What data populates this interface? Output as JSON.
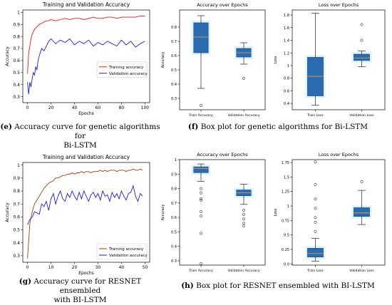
{
  "captions": {
    "e": {
      "tag": "(e)",
      "text": " Accuracy curve for genetic algorithms for",
      "line2": "Bi-LSTM"
    },
    "f": {
      "tag": "(f)",
      "text": " Box plot for genetic algorithms for Bi-LSTM"
    },
    "g": {
      "tag": "(g)",
      "text": " Accuracy curve for RESNET ensembled",
      "line2": "with BI-LSTM"
    },
    "h": {
      "tag": "(h)",
      "text": " Box plot for RESNET ensembled with BI-LSTM"
    }
  },
  "chart_data": [
    {
      "id": "e",
      "type": "line",
      "title": "Training and Validation Accuracy",
      "xlabel": "Epochs",
      "ylabel": "Accuracy",
      "xlim": [
        -4,
        104
      ],
      "ylim": [
        0.25,
        1.02
      ],
      "xticks": [
        0,
        20,
        40,
        60,
        80,
        100
      ],
      "yticks": [
        0.3,
        0.4,
        0.5,
        0.6,
        0.7,
        0.8,
        0.9,
        1.0
      ],
      "legend_position": "center-right",
      "series": [
        {
          "name": "Training accuracy",
          "color": "#e31a1c",
          "x": [
            0,
            1,
            2,
            3,
            4,
            5,
            6,
            7,
            8,
            9,
            10,
            12,
            14,
            16,
            18,
            20,
            24,
            28,
            32,
            36,
            40,
            44,
            48,
            52,
            56,
            60,
            64,
            68,
            72,
            76,
            80,
            84,
            88,
            92,
            96,
            100
          ],
          "y": [
            0.49,
            0.66,
            0.72,
            0.78,
            0.82,
            0.84,
            0.86,
            0.87,
            0.88,
            0.89,
            0.9,
            0.91,
            0.92,
            0.93,
            0.93,
            0.94,
            0.93,
            0.94,
            0.95,
            0.94,
            0.95,
            0.95,
            0.94,
            0.95,
            0.96,
            0.95,
            0.95,
            0.96,
            0.96,
            0.95,
            0.96,
            0.96,
            0.96,
            0.96,
            0.97,
            0.97
          ]
        },
        {
          "name": "Validation accuracy",
          "color": "#1f1fbf",
          "x": [
            0,
            1,
            2,
            3,
            4,
            5,
            6,
            7,
            8,
            9,
            10,
            12,
            14,
            16,
            18,
            20,
            24,
            28,
            32,
            36,
            40,
            44,
            48,
            52,
            56,
            60,
            64,
            68,
            72,
            76,
            80,
            84,
            88,
            92,
            96,
            100
          ],
          "y": [
            0.42,
            0.32,
            0.42,
            0.38,
            0.45,
            0.5,
            0.48,
            0.55,
            0.52,
            0.6,
            0.64,
            0.7,
            0.68,
            0.72,
            0.76,
            0.78,
            0.74,
            0.77,
            0.75,
            0.78,
            0.73,
            0.76,
            0.74,
            0.77,
            0.72,
            0.75,
            0.73,
            0.76,
            0.74,
            0.72,
            0.77,
            0.73,
            0.76,
            0.71,
            0.74,
            0.76
          ]
        }
      ]
    },
    {
      "id": "f1",
      "type": "box",
      "title": "Accuracy over Epochs",
      "ylabel": "Accuracy",
      "ylim": [
        0.22,
        0.92
      ],
      "yticks": [
        0.3,
        0.4,
        0.5,
        0.6,
        0.7,
        0.8
      ],
      "boxes": [
        {
          "label": "Train Accuracy",
          "whisker_low": 0.37,
          "q1": 0.62,
          "median": 0.73,
          "q3": 0.83,
          "whisker_high": 0.88,
          "outliers": [
            0.25
          ]
        },
        {
          "label": "Validation Accuracy",
          "whisker_low": 0.54,
          "q1": 0.59,
          "median": 0.62,
          "q3": 0.65,
          "whisker_high": 0.69,
          "outliers": [
            0.44
          ]
        }
      ]
    },
    {
      "id": "f2",
      "type": "box",
      "title": "Loss over Epochs",
      "ylabel": "Loss",
      "ylim": [
        0.3,
        1.88
      ],
      "yticks": [
        0.4,
        0.6,
        0.8,
        1.0,
        1.2,
        1.4,
        1.6,
        1.8
      ],
      "boxes": [
        {
          "label": "Train Loss",
          "whisker_low": 0.37,
          "q1": 0.52,
          "median": 0.83,
          "q3": 1.13,
          "whisker_high": 1.83,
          "outliers": []
        },
        {
          "label": "Validation Loss",
          "whisker_low": 0.98,
          "q1": 1.08,
          "median": 1.12,
          "q3": 1.18,
          "whisker_high": 1.23,
          "outliers": [
            1.4,
            1.65
          ]
        }
      ]
    },
    {
      "id": "g",
      "type": "line",
      "title": "Training and Validation Accuracy",
      "xlabel": "Epochs",
      "ylabel": "Accuracy",
      "xlim": [
        -2,
        52
      ],
      "ylim": [
        0.25,
        1.02
      ],
      "xticks": [
        0,
        10,
        20,
        30,
        40,
        50
      ],
      "yticks": [
        0.3,
        0.4,
        0.5,
        0.6,
        0.7,
        0.8,
        0.9,
        1.0
      ],
      "legend_position": "lower-right",
      "series": [
        {
          "name": "Training accuracy",
          "color": "#8b4513",
          "x": [
            0,
            1,
            2,
            3,
            4,
            5,
            6,
            7,
            8,
            9,
            10,
            11,
            12,
            13,
            14,
            15,
            16,
            17,
            18,
            19,
            20,
            21,
            22,
            23,
            24,
            25,
            26,
            27,
            28,
            29,
            30,
            31,
            32,
            33,
            34,
            35,
            36,
            37,
            38,
            39,
            40,
            41,
            42,
            43,
            44,
            45,
            46,
            47,
            48,
            49
          ],
          "y": [
            0.28,
            0.55,
            0.64,
            0.7,
            0.73,
            0.76,
            0.79,
            0.82,
            0.84,
            0.86,
            0.87,
            0.88,
            0.9,
            0.9,
            0.91,
            0.92,
            0.92,
            0.93,
            0.93,
            0.94,
            0.93,
            0.94,
            0.94,
            0.95,
            0.94,
            0.95,
            0.95,
            0.94,
            0.95,
            0.95,
            0.95,
            0.96,
            0.95,
            0.96,
            0.95,
            0.96,
            0.96,
            0.96,
            0.95,
            0.96,
            0.96,
            0.96,
            0.95,
            0.96,
            0.96,
            0.97,
            0.96,
            0.96,
            0.97,
            0.96
          ]
        },
        {
          "name": "Validation accuracy",
          "color": "#1f1fbf",
          "x": [
            0,
            1,
            2,
            3,
            4,
            5,
            6,
            7,
            8,
            9,
            10,
            11,
            12,
            13,
            14,
            15,
            16,
            17,
            18,
            19,
            20,
            21,
            22,
            23,
            24,
            25,
            26,
            27,
            28,
            29,
            30,
            31,
            32,
            33,
            34,
            35,
            36,
            37,
            38,
            39,
            40,
            41,
            42,
            43,
            44,
            45,
            46,
            47,
            48,
            49
          ],
          "y": [
            0.54,
            0.58,
            0.6,
            0.64,
            0.63,
            0.62,
            0.7,
            0.68,
            0.72,
            0.65,
            0.74,
            0.78,
            0.7,
            0.76,
            0.8,
            0.74,
            0.72,
            0.78,
            0.75,
            0.8,
            0.76,
            0.73,
            0.79,
            0.74,
            0.8,
            0.76,
            0.72,
            0.77,
            0.79,
            0.75,
            0.78,
            0.73,
            0.8,
            0.76,
            0.77,
            0.72,
            0.79,
            0.75,
            0.78,
            0.74,
            0.8,
            0.76,
            0.73,
            0.78,
            0.79,
            0.84,
            0.76,
            0.72,
            0.78,
            0.76
          ]
        }
      ]
    },
    {
      "id": "h1",
      "type": "box",
      "title": "Accuracy over Epochs",
      "ylabel": "Accuracy",
      "ylim": [
        0.27,
        1.0
      ],
      "yticks": [
        0.3,
        0.4,
        0.5,
        0.6,
        0.7,
        0.8,
        0.9,
        1.0
      ],
      "boxes": [
        {
          "label": "Train Accuracy",
          "whisker_low": 0.85,
          "q1": 0.91,
          "median": 0.94,
          "q3": 0.95,
          "whisker_high": 0.97,
          "outliers": [
            0.8,
            0.77,
            0.73,
            0.72,
            0.64,
            0.61,
            0.49,
            0.28
          ]
        },
        {
          "label": "Validation Accuracy",
          "whisker_low": 0.69,
          "q1": 0.75,
          "median": 0.77,
          "q3": 0.79,
          "whisker_high": 0.83,
          "outliers": [
            0.65,
            0.62,
            0.59,
            0.56,
            0.54
          ]
        }
      ]
    },
    {
      "id": "h2",
      "type": "box",
      "title": "Loss over Epochs",
      "ylabel": "Loss",
      "ylim": [
        -0.02,
        1.8
      ],
      "yticks": [
        0.0,
        0.25,
        0.5,
        0.75,
        1.0,
        1.25,
        1.5,
        1.75
      ],
      "boxes": [
        {
          "label": "Train Loss",
          "whisker_low": 0.05,
          "q1": 0.12,
          "median": 0.18,
          "q3": 0.27,
          "whisker_high": 0.44,
          "outliers": [
            0.56,
            0.72,
            0.8,
            0.96,
            1.12,
            1.37,
            1.76
          ]
        },
        {
          "label": "Validation Loss",
          "whisker_low": 0.68,
          "q1": 0.82,
          "median": 0.88,
          "q3": 0.97,
          "whisker_high": 1.27,
          "outliers": [
            1.42
          ]
        }
      ]
    }
  ]
}
